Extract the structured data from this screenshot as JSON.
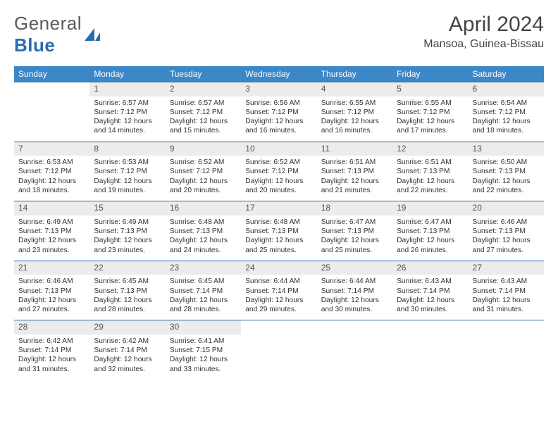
{
  "logo": {
    "text1": "General",
    "text2": "Blue"
  },
  "header": {
    "title": "April 2024",
    "location": "Mansoa, Guinea-Bissau"
  },
  "colors": {
    "header_bg": "#3b87c8",
    "header_text": "#ffffff",
    "daynum_bg": "#ececec",
    "border_top": "#2a6cb0",
    "text": "#333333",
    "logo_gray": "#5a5a5a",
    "logo_blue": "#2a6cb0"
  },
  "weekdays": [
    "Sunday",
    "Monday",
    "Tuesday",
    "Wednesday",
    "Thursday",
    "Friday",
    "Saturday"
  ],
  "weeks": [
    {
      "days": [
        null,
        {
          "n": "1",
          "sr": "6:57 AM",
          "ss": "7:12 PM",
          "dl": "12 hours and 14 minutes."
        },
        {
          "n": "2",
          "sr": "6:57 AM",
          "ss": "7:12 PM",
          "dl": "12 hours and 15 minutes."
        },
        {
          "n": "3",
          "sr": "6:56 AM",
          "ss": "7:12 PM",
          "dl": "12 hours and 16 minutes."
        },
        {
          "n": "4",
          "sr": "6:55 AM",
          "ss": "7:12 PM",
          "dl": "12 hours and 16 minutes."
        },
        {
          "n": "5",
          "sr": "6:55 AM",
          "ss": "7:12 PM",
          "dl": "12 hours and 17 minutes."
        },
        {
          "n": "6",
          "sr": "6:54 AM",
          "ss": "7:12 PM",
          "dl": "12 hours and 18 minutes."
        }
      ]
    },
    {
      "days": [
        {
          "n": "7",
          "sr": "6:53 AM",
          "ss": "7:12 PM",
          "dl": "12 hours and 18 minutes."
        },
        {
          "n": "8",
          "sr": "6:53 AM",
          "ss": "7:12 PM",
          "dl": "12 hours and 19 minutes."
        },
        {
          "n": "9",
          "sr": "6:52 AM",
          "ss": "7:12 PM",
          "dl": "12 hours and 20 minutes."
        },
        {
          "n": "10",
          "sr": "6:52 AM",
          "ss": "7:12 PM",
          "dl": "12 hours and 20 minutes."
        },
        {
          "n": "11",
          "sr": "6:51 AM",
          "ss": "7:13 PM",
          "dl": "12 hours and 21 minutes."
        },
        {
          "n": "12",
          "sr": "6:51 AM",
          "ss": "7:13 PM",
          "dl": "12 hours and 22 minutes."
        },
        {
          "n": "13",
          "sr": "6:50 AM",
          "ss": "7:13 PM",
          "dl": "12 hours and 22 minutes."
        }
      ]
    },
    {
      "days": [
        {
          "n": "14",
          "sr": "6:49 AM",
          "ss": "7:13 PM",
          "dl": "12 hours and 23 minutes."
        },
        {
          "n": "15",
          "sr": "6:49 AM",
          "ss": "7:13 PM",
          "dl": "12 hours and 23 minutes."
        },
        {
          "n": "16",
          "sr": "6:48 AM",
          "ss": "7:13 PM",
          "dl": "12 hours and 24 minutes."
        },
        {
          "n": "17",
          "sr": "6:48 AM",
          "ss": "7:13 PM",
          "dl": "12 hours and 25 minutes."
        },
        {
          "n": "18",
          "sr": "6:47 AM",
          "ss": "7:13 PM",
          "dl": "12 hours and 25 minutes."
        },
        {
          "n": "19",
          "sr": "6:47 AM",
          "ss": "7:13 PM",
          "dl": "12 hours and 26 minutes."
        },
        {
          "n": "20",
          "sr": "6:46 AM",
          "ss": "7:13 PM",
          "dl": "12 hours and 27 minutes."
        }
      ]
    },
    {
      "days": [
        {
          "n": "21",
          "sr": "6:46 AM",
          "ss": "7:13 PM",
          "dl": "12 hours and 27 minutes."
        },
        {
          "n": "22",
          "sr": "6:45 AM",
          "ss": "7:13 PM",
          "dl": "12 hours and 28 minutes."
        },
        {
          "n": "23",
          "sr": "6:45 AM",
          "ss": "7:14 PM",
          "dl": "12 hours and 28 minutes."
        },
        {
          "n": "24",
          "sr": "6:44 AM",
          "ss": "7:14 PM",
          "dl": "12 hours and 29 minutes."
        },
        {
          "n": "25",
          "sr": "6:44 AM",
          "ss": "7:14 PM",
          "dl": "12 hours and 30 minutes."
        },
        {
          "n": "26",
          "sr": "6:43 AM",
          "ss": "7:14 PM",
          "dl": "12 hours and 30 minutes."
        },
        {
          "n": "27",
          "sr": "6:43 AM",
          "ss": "7:14 PM",
          "dl": "12 hours and 31 minutes."
        }
      ]
    },
    {
      "days": [
        {
          "n": "28",
          "sr": "6:42 AM",
          "ss": "7:14 PM",
          "dl": "12 hours and 31 minutes."
        },
        {
          "n": "29",
          "sr": "6:42 AM",
          "ss": "7:14 PM",
          "dl": "12 hours and 32 minutes."
        },
        {
          "n": "30",
          "sr": "6:41 AM",
          "ss": "7:15 PM",
          "dl": "12 hours and 33 minutes."
        },
        null,
        null,
        null,
        null
      ]
    }
  ],
  "labels": {
    "sunrise": "Sunrise:",
    "sunset": "Sunset:",
    "daylight": "Daylight:"
  }
}
